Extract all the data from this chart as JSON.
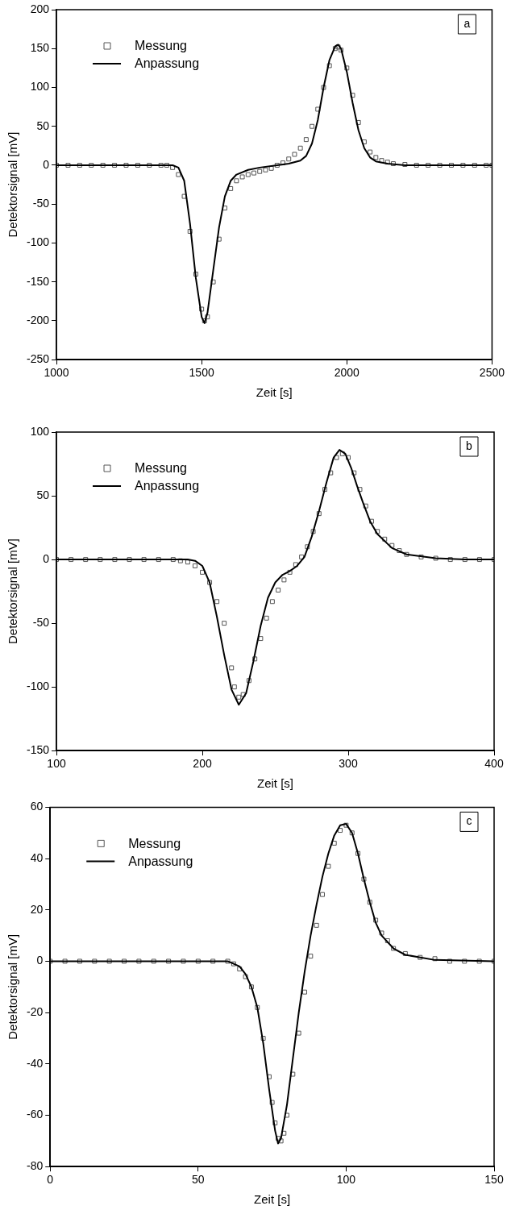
{
  "chart_data": [
    {
      "type": "scatter",
      "xlabel": "Zeit [s]",
      "ylabel": "Detektorsignal [mV]",
      "annotations": [
        "a"
      ],
      "legend": "top left",
      "grid": false,
      "xlim": [
        1000,
        2500
      ],
      "xticks": [
        1000,
        1500,
        2000,
        2500
      ],
      "ylim": [
        -250,
        200
      ],
      "yticks": [
        -250,
        -200,
        -150,
        -100,
        -50,
        0,
        50,
        100,
        150,
        200
      ],
      "series": [
        {
          "name": "Messung",
          "type": "scatter",
          "marker": "square",
          "color": "#555555",
          "x": [
            1000,
            1040,
            1080,
            1120,
            1160,
            1200,
            1240,
            1280,
            1320,
            1360,
            1380,
            1400,
            1420,
            1440,
            1460,
            1480,
            1500,
            1510,
            1520,
            1540,
            1560,
            1580,
            1600,
            1620,
            1640,
            1660,
            1680,
            1700,
            1720,
            1740,
            1760,
            1780,
            1800,
            1820,
            1840,
            1860,
            1880,
            1900,
            1920,
            1940,
            1960,
            1970,
            1980,
            2000,
            2020,
            2040,
            2060,
            2080,
            2100,
            2120,
            2140,
            2160,
            2200,
            2240,
            2280,
            2320,
            2360,
            2400,
            2440,
            2480,
            2500
          ],
          "values": [
            0,
            0,
            0,
            0,
            0,
            0,
            0,
            0,
            0,
            0,
            0,
            -3,
            -12,
            -40,
            -85,
            -140,
            -185,
            -200,
            -195,
            -150,
            -95,
            -55,
            -30,
            -20,
            -15,
            -12,
            -10,
            -8,
            -6,
            -4,
            0,
            3,
            8,
            14,
            22,
            33,
            50,
            72,
            100,
            128,
            150,
            152,
            148,
            125,
            90,
            55,
            30,
            17,
            10,
            6,
            4,
            2,
            1,
            0,
            0,
            0,
            0,
            0,
            0,
            0,
            0
          ]
        },
        {
          "name": "Anpassung",
          "type": "line",
          "marker": "none",
          "line_style": "solid",
          "color": "#000000",
          "x": [
            1000,
            1400,
            1420,
            1440,
            1460,
            1480,
            1500,
            1510,
            1520,
            1540,
            1560,
            1580,
            1600,
            1620,
            1660,
            1700,
            1760,
            1800,
            1840,
            1860,
            1880,
            1900,
            1920,
            1940,
            1960,
            1970,
            1980,
            2000,
            2020,
            2040,
            2060,
            2080,
            2100,
            2140,
            2200,
            2500
          ],
          "values": [
            0,
            0,
            -3,
            -20,
            -75,
            -145,
            -195,
            -203,
            -190,
            -135,
            -80,
            -40,
            -20,
            -12,
            -6,
            -3,
            0,
            2,
            6,
            12,
            28,
            58,
            100,
            135,
            153,
            155,
            150,
            120,
            80,
            45,
            22,
            10,
            5,
            2,
            0,
            0
          ]
        }
      ]
    },
    {
      "type": "scatter",
      "xlabel": "Zeit [s]",
      "ylabel": "Detektorsignal [mV]",
      "annotations": [
        "b"
      ],
      "legend": "top left",
      "grid": false,
      "xlim": [
        100,
        400
      ],
      "xticks": [
        100,
        200,
        300,
        400
      ],
      "ylim": [
        -150,
        100
      ],
      "yticks": [
        -150,
        -100,
        -50,
        0,
        50,
        100
      ],
      "series": [
        {
          "name": "Messung",
          "type": "scatter",
          "marker": "square",
          "color": "#555555",
          "x": [
            100,
            110,
            120,
            130,
            140,
            150,
            160,
            170,
            180,
            185,
            190,
            195,
            200,
            205,
            210,
            215,
            220,
            222,
            225,
            228,
            232,
            236,
            240,
            244,
            248,
            252,
            256,
            260,
            264,
            268,
            272,
            276,
            280,
            284,
            288,
            292,
            296,
            300,
            304,
            308,
            312,
            316,
            320,
            325,
            330,
            335,
            340,
            350,
            360,
            370,
            380,
            390,
            400
          ],
          "values": [
            0,
            0,
            0,
            0,
            0,
            0,
            0,
            0,
            0,
            -1,
            -2,
            -5,
            -10,
            -18,
            -33,
            -50,
            -85,
            -100,
            -108,
            -106,
            -95,
            -78,
            -62,
            -46,
            -33,
            -24,
            -16,
            -10,
            -4,
            2,
            10,
            22,
            36,
            55,
            68,
            80,
            83,
            80,
            68,
            55,
            42,
            30,
            22,
            16,
            11,
            7,
            4,
            2,
            1,
            0,
            0,
            0,
            0
          ]
        },
        {
          "name": "Anpassung",
          "type": "line",
          "marker": "none",
          "line_style": "solid",
          "color": "#000000",
          "x": [
            100,
            190,
            195,
            200,
            205,
            210,
            215,
            220,
            225,
            230,
            235,
            240,
            245,
            250,
            255,
            260,
            265,
            270,
            275,
            280,
            285,
            290,
            294,
            298,
            302,
            306,
            310,
            315,
            320,
            330,
            340,
            360,
            380,
            400
          ],
          "values": [
            0,
            0,
            -1,
            -5,
            -18,
            -45,
            -75,
            -102,
            -114,
            -105,
            -80,
            -52,
            -30,
            -18,
            -12,
            -9,
            -5,
            2,
            18,
            38,
            60,
            80,
            86,
            83,
            72,
            58,
            45,
            30,
            20,
            9,
            4,
            1,
            0,
            0
          ]
        }
      ]
    },
    {
      "type": "scatter",
      "xlabel": "Zeit [s]",
      "ylabel": "Detektorsignal [mV]",
      "annotations": [
        "c"
      ],
      "legend": "top left",
      "grid": false,
      "xlim": [
        0,
        150
      ],
      "xticks": [
        0,
        50,
        100,
        150
      ],
      "ylim": [
        -80,
        60
      ],
      "yticks": [
        -80,
        -60,
        -40,
        -20,
        0,
        20,
        40,
        60
      ],
      "series": [
        {
          "name": "Messung",
          "type": "scatter",
          "marker": "square",
          "color": "#555555",
          "x": [
            0,
            5,
            10,
            15,
            20,
            25,
            30,
            35,
            40,
            45,
            50,
            55,
            60,
            62,
            64,
            66,
            68,
            70,
            72,
            74,
            75,
            76,
            77,
            78,
            79,
            80,
            82,
            84,
            86,
            88,
            90,
            92,
            94,
            96,
            98,
            100,
            102,
            104,
            106,
            108,
            110,
            112,
            114,
            116,
            120,
            125,
            130,
            135,
            140,
            145,
            150
          ],
          "values": [
            0,
            0,
            0,
            0,
            0,
            0,
            0,
            0,
            0,
            0,
            0,
            0,
            0,
            -1,
            -3,
            -6,
            -10,
            -18,
            -30,
            -45,
            -55,
            -63,
            -69,
            -70,
            -67,
            -60,
            -44,
            -28,
            -12,
            2,
            14,
            26,
            37,
            46,
            51,
            53,
            50,
            42,
            32,
            23,
            16,
            11,
            8,
            5,
            3,
            1.5,
            1,
            0,
            0,
            0,
            0
          ]
        },
        {
          "name": "Anpassung",
          "type": "line",
          "marker": "none",
          "line_style": "solid",
          "color": "#000000",
          "x": [
            0,
            60,
            64,
            66,
            68,
            70,
            72,
            74,
            76,
            77,
            78,
            80,
            82,
            84,
            86,
            88,
            90,
            92,
            94,
            96,
            98,
            100,
            102,
            104,
            106,
            108,
            110,
            112,
            116,
            120,
            130,
            150
          ],
          "values": [
            0,
            0,
            -2,
            -5,
            -10,
            -18,
            -32,
            -50,
            -66,
            -71,
            -69,
            -56,
            -38,
            -20,
            -4,
            10,
            22,
            33,
            42,
            49,
            53,
            53.5,
            50,
            42,
            32,
            23,
            15,
            10,
            5,
            2.5,
            0.5,
            0
          ]
        }
      ]
    }
  ]
}
